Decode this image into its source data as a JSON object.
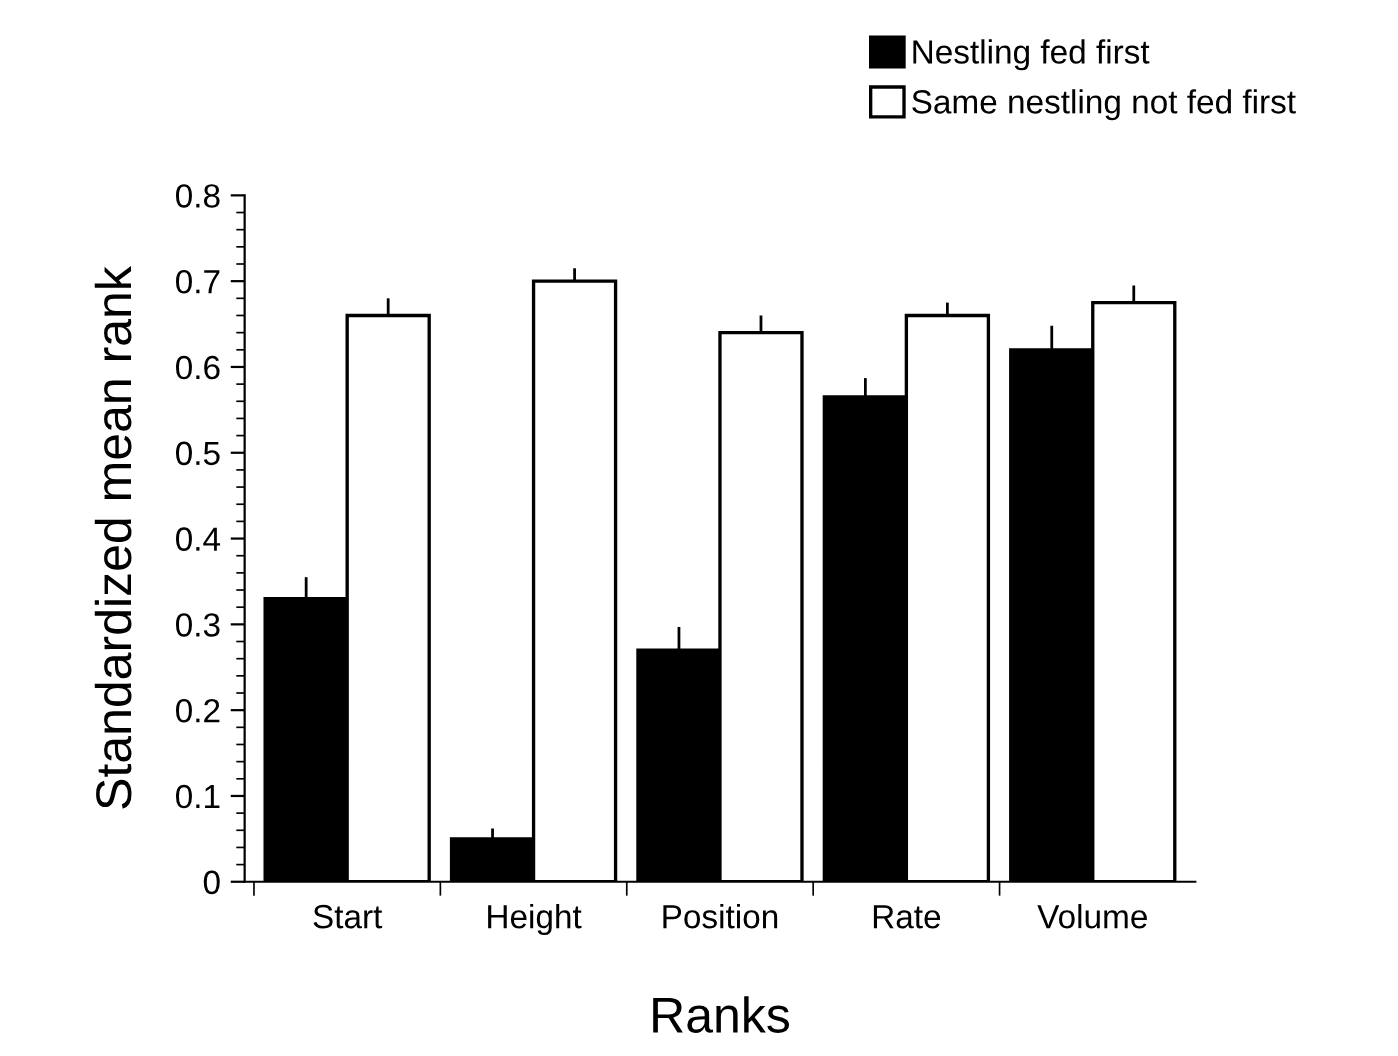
{
  "chart_data": {
    "type": "bar",
    "xlabel": "Ranks",
    "ylabel": "Standardized mean rank",
    "categories": [
      "Start",
      "Height",
      "Position",
      "Rate",
      "Volume"
    ],
    "series": [
      {
        "name": "Nestling fed first",
        "color": "#000000",
        "values": [
          0.33,
          0.05,
          0.27,
          0.565,
          0.62
        ],
        "errors": [
          0.025,
          0.012,
          0.027,
          0.022,
          0.028
        ]
      },
      {
        "name": "Same nestling not fed first",
        "color": "#ffffff",
        "values": [
          0.66,
          0.7,
          0.64,
          0.66,
          0.675
        ],
        "errors": [
          0.02,
          0.015,
          0.02,
          0.015,
          0.02
        ]
      }
    ],
    "ylim": [
      0,
      0.8
    ],
    "yticks": [
      {
        "value": 0,
        "label": "0"
      },
      0.1,
      0.2,
      0.3,
      0.4,
      0.5,
      0.6,
      0.7,
      0.8
    ],
    "grid": false,
    "legend": "top right"
  }
}
